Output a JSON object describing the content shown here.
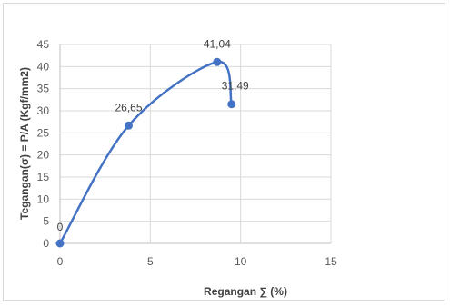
{
  "chart_data": {
    "type": "scatter",
    "xlabel": "Regangan ∑ (%)",
    "ylabel": "Tegangan(σ) = P/A (Kgf/mm2)",
    "xlim": [
      0,
      15
    ],
    "ylim": [
      0,
      45
    ],
    "x_ticks": [
      "0",
      "5",
      "10",
      "15"
    ],
    "y_ticks": [
      "0",
      "5",
      "10",
      "15",
      "20",
      "25",
      "30",
      "35",
      "40",
      "45"
    ],
    "grid": true,
    "smooth_line": true,
    "series_color": "#4472c4",
    "points": [
      {
        "x": 0,
        "y": 0,
        "label": "0"
      },
      {
        "x": 3.8,
        "y": 26.65,
        "label": "26,65"
      },
      {
        "x": 8.7,
        "y": 41.04,
        "label": "41,04"
      },
      {
        "x": 9.5,
        "y": 31.49,
        "label": "31,49"
      }
    ]
  }
}
